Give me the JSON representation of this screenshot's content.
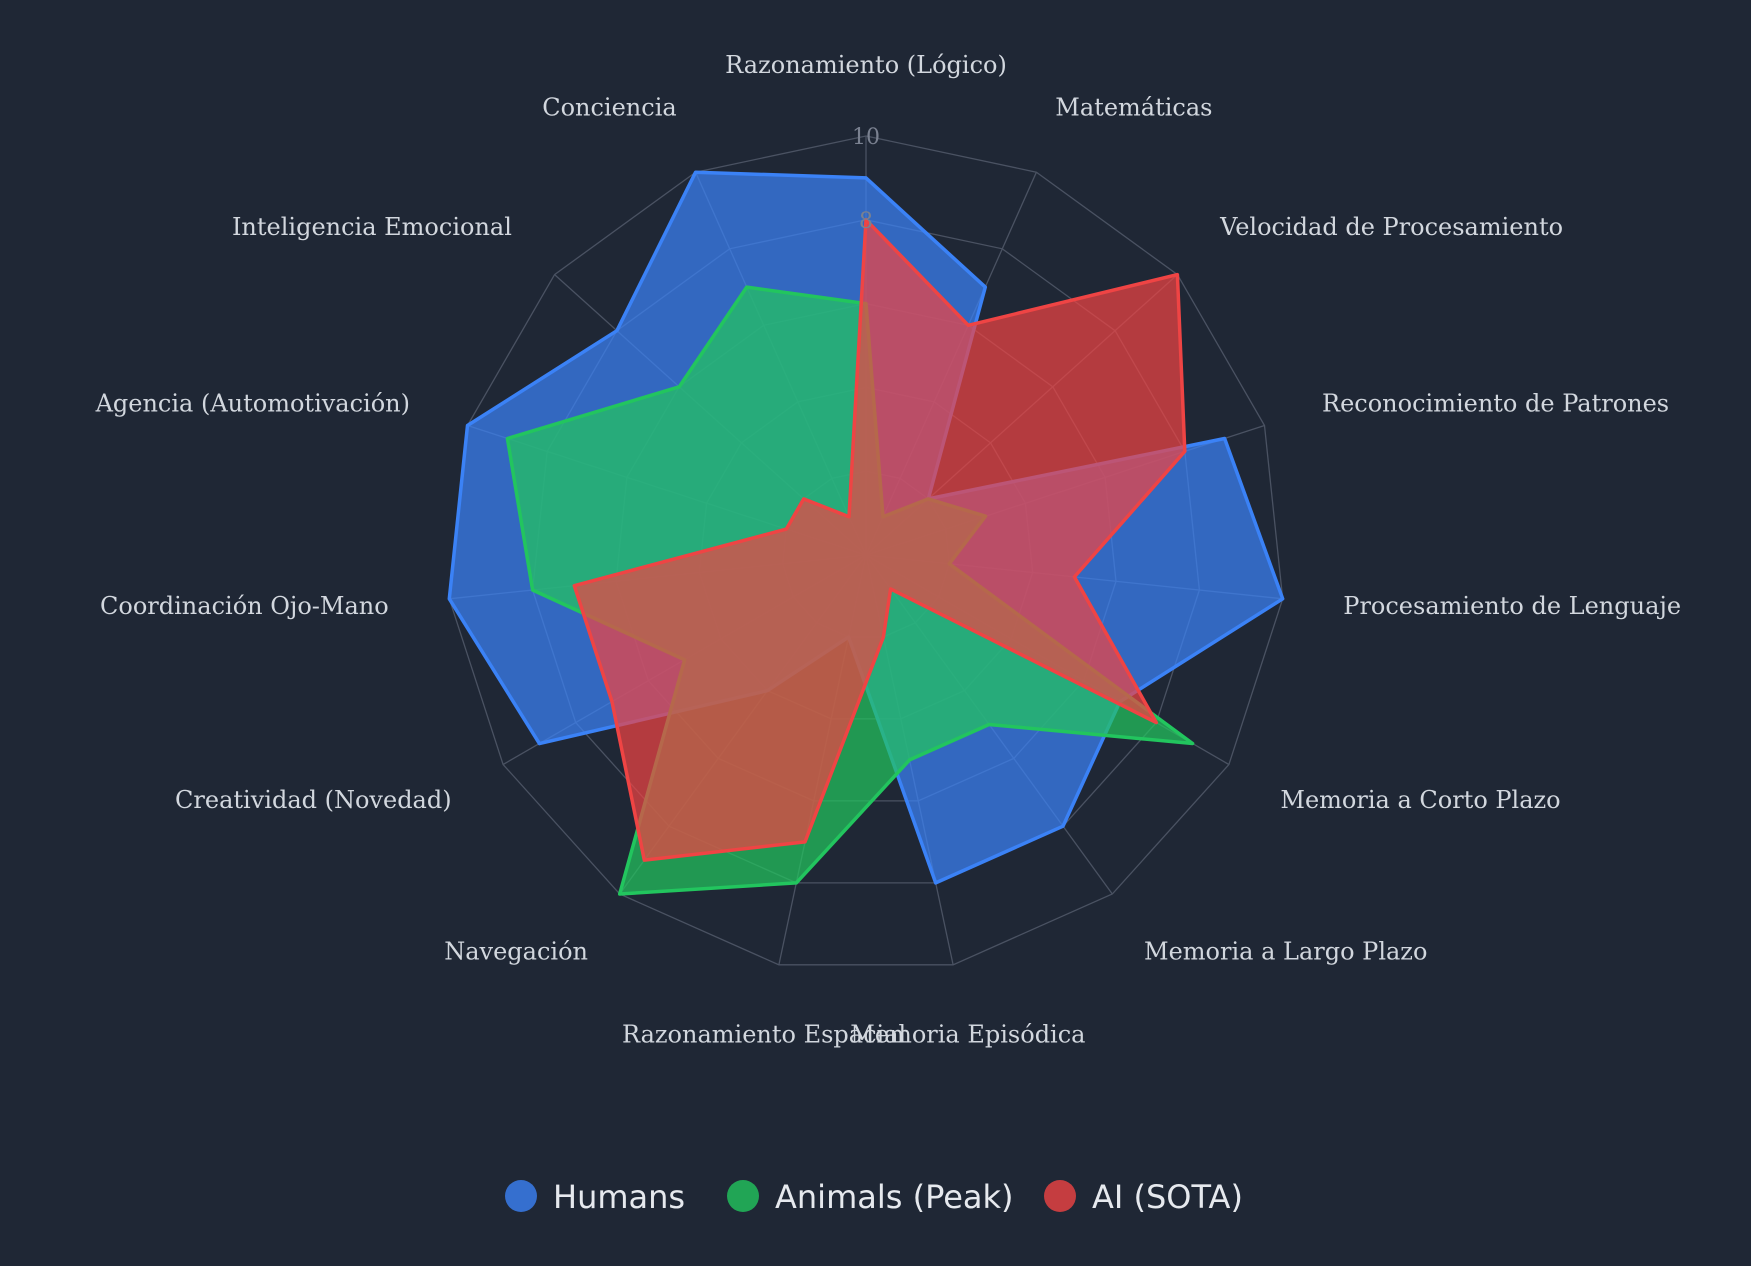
{
  "chart_data": {
    "type": "radar",
    "axes": [
      "Razonamiento (Lógico)",
      "Matemáticas",
      "Velocidad de Procesamiento",
      "Reconocimiento de Patrones",
      "Procesamiento de Lenguaje",
      "Memoria a Corto Plazo",
      "Memoria a Largo Plazo",
      "Memoria Episódica",
      "Razonamiento Espacial",
      "Navegación",
      "Creatividad (Novedad)",
      "Coordinación Ojo-Mano",
      "Agencia (Automotivación)",
      "Inteligencia Emocional",
      "Conciencia"
    ],
    "r_range": [
      0,
      10
    ],
    "ticks": [
      0,
      2,
      4,
      6,
      8,
      10
    ],
    "tick_labels_shown": [
      "8",
      "10"
    ],
    "series": [
      {
        "name": "Humans",
        "color": "#3b82f6",
        "values": [
          9,
          7,
          2,
          9,
          10,
          7,
          8,
          8,
          2,
          4,
          9,
          10,
          10,
          8,
          10
        ]
      },
      {
        "name": "Animals (Peak)",
        "color": "#22c55e",
        "values": [
          6,
          1,
          2,
          3,
          2,
          9,
          5,
          5,
          8,
          10,
          5,
          8,
          9,
          6,
          7
        ]
      },
      {
        "name": "AI (SOTA)",
        "color": "#ef4444",
        "values": [
          8,
          6,
          10,
          8,
          5,
          8,
          1,
          2,
          7,
          9,
          7,
          7,
          2,
          2,
          1
        ]
      }
    ],
    "legend_position": "bottom-center"
  }
}
